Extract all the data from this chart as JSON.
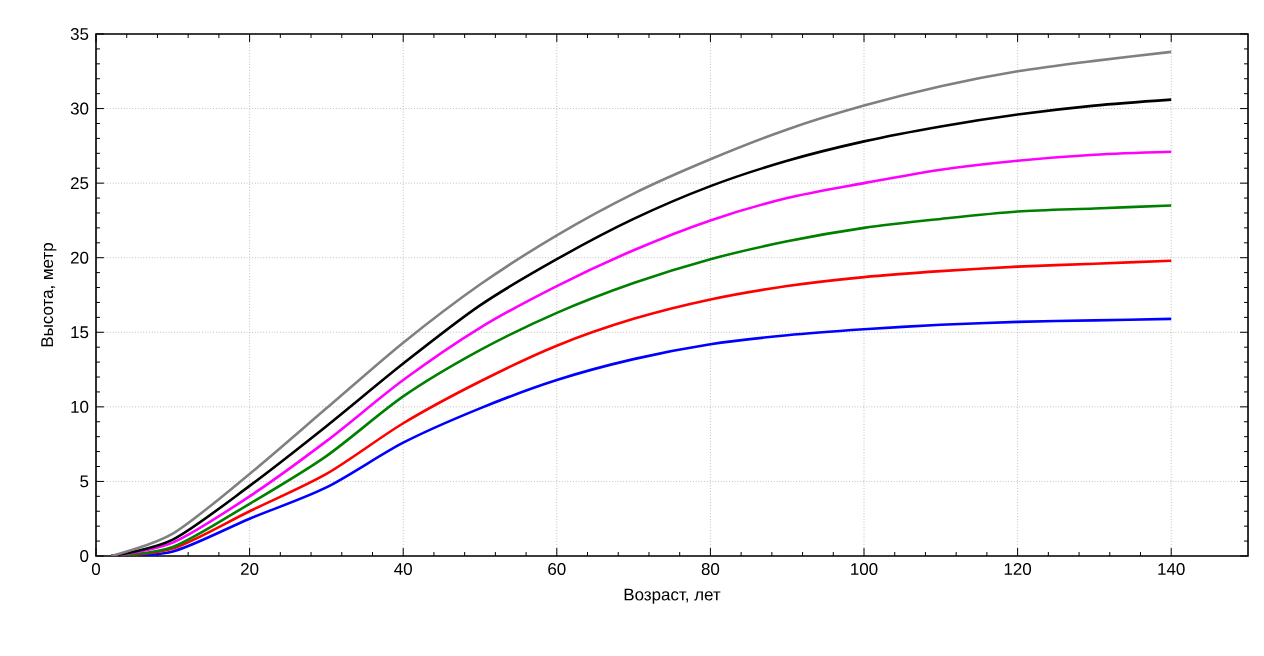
{
  "chart_data": {
    "type": "line",
    "xlabel": "Возраст, лет",
    "ylabel": "Высота, метр",
    "xlim": [
      0,
      150
    ],
    "ylim": [
      0,
      35
    ],
    "xticks": [
      0,
      20,
      40,
      60,
      80,
      100,
      120,
      140
    ],
    "yticks": [
      0,
      5,
      10,
      15,
      20,
      25,
      30,
      35
    ],
    "grid": true,
    "marker": "none",
    "line_style": "solid",
    "x": [
      2,
      10,
      20,
      30,
      40,
      50,
      60,
      70,
      80,
      90,
      100,
      110,
      120,
      130,
      140
    ],
    "series": [
      {
        "color": "#0000ff",
        "values": [
          0,
          0.3,
          2.5,
          4.6,
          7.6,
          9.9,
          11.8,
          13.2,
          14.2,
          14.8,
          15.2,
          15.5,
          15.7,
          15.8,
          15.9
        ]
      },
      {
        "color": "#ff0000",
        "values": [
          0,
          0.5,
          3.0,
          5.5,
          8.9,
          11.7,
          14.1,
          15.9,
          17.2,
          18.1,
          18.7,
          19.1,
          19.4,
          19.6,
          19.8
        ]
      },
      {
        "color": "#008000",
        "values": [
          0,
          0.6,
          3.5,
          6.7,
          10.7,
          13.8,
          16.3,
          18.3,
          19.9,
          21.1,
          22.0,
          22.6,
          23.1,
          23.3,
          23.5
        ]
      },
      {
        "color": "#ff00ff",
        "values": [
          0,
          0.9,
          4.0,
          7.7,
          11.8,
          15.3,
          18.1,
          20.5,
          22.5,
          24.0,
          25.0,
          25.9,
          26.5,
          26.9,
          27.1
        ]
      },
      {
        "color": "#000000",
        "values": [
          0,
          1.1,
          4.7,
          8.7,
          12.9,
          16.8,
          19.9,
          22.6,
          24.8,
          26.5,
          27.8,
          28.8,
          29.6,
          30.2,
          30.6
        ]
      },
      {
        "color": "#808080",
        "values": [
          0,
          1.5,
          5.5,
          9.9,
          14.3,
          18.2,
          21.5,
          24.3,
          26.6,
          28.6,
          30.2,
          31.5,
          32.5,
          33.2,
          33.8
        ]
      }
    ]
  }
}
